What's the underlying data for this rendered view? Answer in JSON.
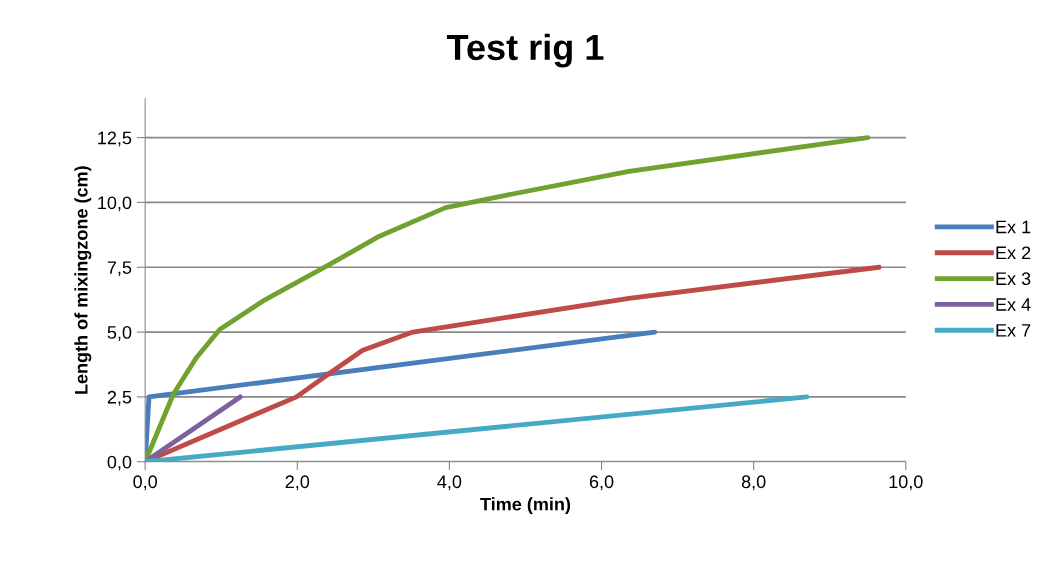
{
  "chart_data": {
    "type": "line",
    "title": "Test rig 1",
    "xlabel": "Time (min)",
    "ylabel": "Length of mixingzone (cm)",
    "xlim": [
      0,
      10
    ],
    "xticks": [
      {
        "value": 0,
        "label": "0,0"
      },
      {
        "value": 2,
        "label": "2,0"
      },
      {
        "value": 4,
        "label": "4,0"
      },
      {
        "value": 6,
        "label": "6,0"
      },
      {
        "value": 8,
        "label": "8,0"
      },
      {
        "value": 10,
        "label": "10,0"
      }
    ],
    "ylim": [
      0,
      14
    ],
    "yticks": [
      {
        "value": 0,
        "label": "0,0"
      },
      {
        "value": 2.5,
        "label": "2,5"
      },
      {
        "value": 5,
        "label": "5,0"
      },
      {
        "value": 7.5,
        "label": "7,5"
      },
      {
        "value": 10,
        "label": "10,0"
      },
      {
        "value": 12.5,
        "label": "12,5"
      }
    ],
    "grid": "y",
    "legend": "right",
    "marker": "none",
    "line_style": "solid",
    "series": [
      {
        "name": "Ex 1",
        "color": "#4a7ebb",
        "x": [
          0,
          0.05,
          6.7
        ],
        "values": [
          0,
          2.5,
          5.0
        ]
      },
      {
        "name": "Ex 2",
        "color": "#be4b48",
        "x": [
          0,
          1.11,
          1.99,
          2.42,
          2.86,
          3.52,
          4.17,
          6.36,
          9.65
        ],
        "values": [
          0,
          1.4,
          2.5,
          3.4,
          4.3,
          5.0,
          5.3,
          6.3,
          7.5
        ]
      },
      {
        "name": "Ex 3",
        "color": "#71a12f",
        "x": [
          0,
          0.37,
          0.67,
          0.98,
          1.55,
          2.42,
          3.08,
          3.95,
          4.61,
          6.36,
          9.5
        ],
        "values": [
          0,
          2.6,
          4.0,
          5.1,
          6.2,
          7.6,
          8.7,
          9.8,
          10.2,
          11.2,
          12.5
        ]
      },
      {
        "name": "Ex 4",
        "color": "#7d60a0",
        "x": [
          0,
          1.25
        ],
        "values": [
          0,
          2.5
        ]
      },
      {
        "name": "Ex 7",
        "color": "#46aac5",
        "x": [
          0,
          8.7
        ],
        "values": [
          0,
          2.5
        ]
      }
    ]
  }
}
